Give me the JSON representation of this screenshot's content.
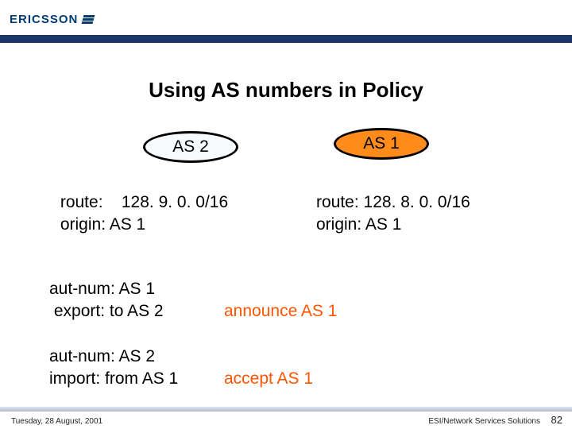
{
  "brand": {
    "name": "ERICSSON",
    "color": "#003b73",
    "stripe_count": 3
  },
  "divider": {
    "dark": "#1b3569",
    "light": "#5d98cd"
  },
  "slide": {
    "title": "Using AS numbers in Policy"
  },
  "nodes": {
    "left": {
      "label": "AS 2",
      "bg": "#f8fbfd",
      "border": "#000000"
    },
    "right": {
      "label": "AS 1",
      "bg": "#ff8c1a",
      "border": "#000000"
    }
  },
  "routes": {
    "left": {
      "line1": " route:    128. 9. 0. 0/16",
      "line2": " origin: AS 1"
    },
    "right": {
      "line1": "route: 128. 8. 0. 0/16",
      "line2": "origin: AS 1"
    }
  },
  "rules": {
    "r1": {
      "l1": "aut-num: AS 1",
      "l2": " export: to AS 2",
      "action": "announce AS 1"
    },
    "r2": {
      "l1": "aut-num: AS 2",
      "l2": "import: from AS 1",
      "action": "accept AS 1"
    },
    "action_color": "#ff5500"
  },
  "footer": {
    "date": "Tuesday, 28 August, 2001",
    "service": "ESI/Network Services Solutions",
    "page": "82"
  }
}
